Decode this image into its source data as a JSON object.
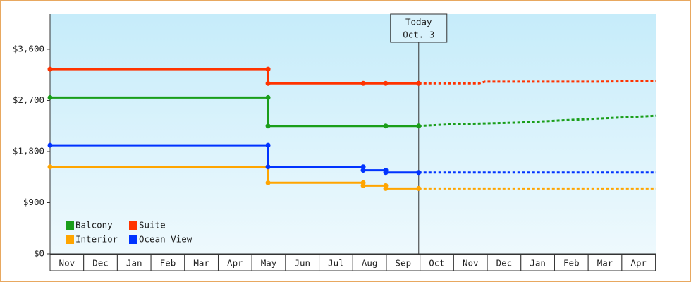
{
  "chart_data": {
    "type": "step-line",
    "categories": [
      "Nov",
      "Dec",
      "Jan",
      "Feb",
      "Mar",
      "Apr",
      "May",
      "Jun",
      "Jul",
      "Aug",
      "Sep",
      "Oct",
      "Nov",
      "Dec",
      "Jan",
      "Feb",
      "Mar",
      "Apr"
    ],
    "xlim": [
      0,
      18.03
    ],
    "ylim": [
      0,
      4220
    ],
    "yticks": [
      {
        "value": 0,
        "label": "$0"
      },
      {
        "value": 900,
        "label": "$900"
      },
      {
        "value": 1800,
        "label": "$1,800"
      },
      {
        "value": 2700,
        "label": "$2,700"
      },
      {
        "value": 3600,
        "label": "$3,600"
      }
    ],
    "legend": "lower left",
    "annotation": {
      "lines": [
        "Today",
        "Oct. 3"
      ],
      "x": 10.96
    },
    "series": [
      {
        "name": "Balcony",
        "color": "#1a9e1a",
        "x": [
          0,
          6.48,
          6.48,
          9.98,
          10.96
        ],
        "values": [
          2750,
          2750,
          2250,
          2250,
          2250
        ],
        "forecast_x": [
          10.96,
          11.93,
          13.92,
          15.91,
          18.03
        ],
        "forecast_values": [
          2250,
          2280,
          2310,
          2370,
          2430
        ]
      },
      {
        "name": "Suite",
        "color": "#ff3300",
        "x": [
          0,
          6.48,
          6.48,
          9.31,
          9.98,
          10.96
        ],
        "values": [
          3250,
          3250,
          3000,
          3000,
          3000,
          3000
        ],
        "forecast_x": [
          10.96,
          12.76,
          12.93,
          16.2,
          18.03
        ],
        "forecast_values": [
          3000,
          3000,
          3030,
          3030,
          3040
        ]
      },
      {
        "name": "Interior",
        "color": "#ffa500",
        "x": [
          0,
          6.48,
          6.48,
          9.31,
          9.31,
          9.98,
          9.98,
          10.96
        ],
        "values": [
          1530,
          1530,
          1250,
          1250,
          1200,
          1200,
          1150,
          1150
        ],
        "forecast_x": [
          10.96,
          18.03
        ],
        "forecast_values": [
          1150,
          1150
        ]
      },
      {
        "name": "Ocean View",
        "color": "#0033ff",
        "x": [
          0,
          6.48,
          6.48,
          9.31,
          9.31,
          9.98,
          9.98,
          10.96
        ],
        "values": [
          1910,
          1910,
          1530,
          1530,
          1470,
          1470,
          1430,
          1430
        ],
        "forecast_x": [
          10.96,
          18.03
        ],
        "forecast_values": [
          1430,
          1430
        ]
      }
    ]
  }
}
